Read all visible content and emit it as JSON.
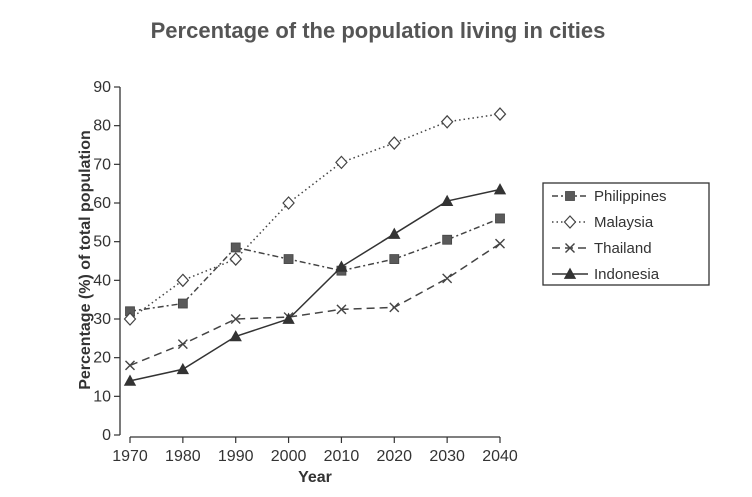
{
  "chart_data": {
    "type": "line",
    "title": "Percentage of the population living in cities",
    "xlabel": "Year",
    "ylabel": "Percentage (%) of total population",
    "x": [
      1970,
      1980,
      1990,
      2000,
      2010,
      2020,
      2030,
      2040
    ],
    "ylim": [
      0,
      90
    ],
    "yticks": [
      0,
      10,
      20,
      30,
      40,
      50,
      60,
      70,
      80,
      90
    ],
    "grid": false,
    "legend_position": "right",
    "series": [
      {
        "name": "Philippines",
        "values": [
          32,
          34,
          48.5,
          45.5,
          42.5,
          45.5,
          50.5,
          56
        ],
        "marker": "square",
        "dash": "6,3,2,3",
        "color": "#444444"
      },
      {
        "name": "Malaysia",
        "values": [
          30,
          40,
          45.5,
          60,
          70.5,
          75.5,
          81,
          83
        ],
        "marker": "diamond",
        "dash": "1.5,3",
        "color": "#444444"
      },
      {
        "name": "Thailand",
        "values": [
          18,
          23.5,
          30,
          30.5,
          32.5,
          33,
          40.5,
          49.5
        ],
        "marker": "x",
        "dash": "8,5",
        "color": "#444444"
      },
      {
        "name": "Indonesia",
        "values": [
          14,
          17,
          25.5,
          30,
          43.5,
          52,
          60.5,
          63.5
        ],
        "marker": "triangle",
        "dash": "",
        "color": "#333333"
      }
    ]
  }
}
